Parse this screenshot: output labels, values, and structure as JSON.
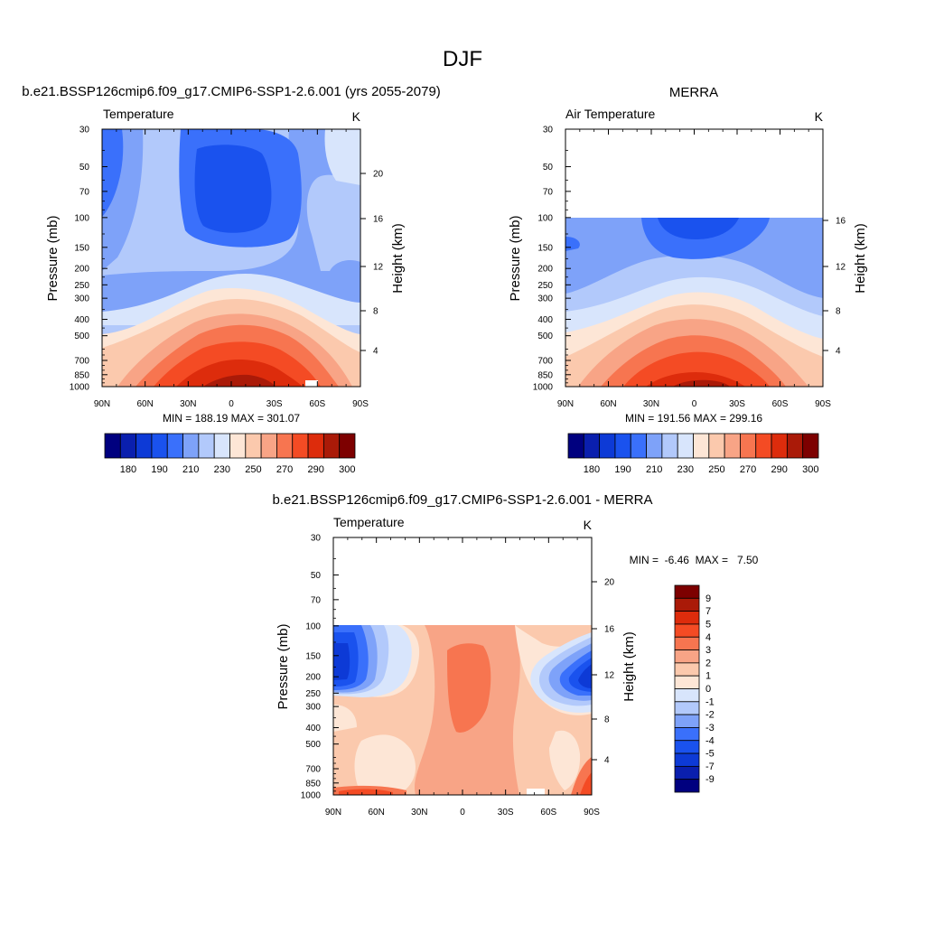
{
  "page_title": "DJF",
  "chart_data": [
    {
      "type": "heatmap",
      "title": "b.e21.BSSP126cmip6.f09_g17.CMIP6-SSP1-2.6.001 (yrs 2055-2079)",
      "subtitle_left": "Temperature",
      "subtitle_right": "K",
      "xlabel": "",
      "ylabel": "Pressure (mb)",
      "ylabel_right": "Height (km)",
      "x_ticks": [
        "90N",
        "60N",
        "30N",
        "0",
        "30S",
        "60S",
        "90S"
      ],
      "y_ticks": [
        "30",
        "50",
        "70",
        "100",
        "150",
        "200",
        "250",
        "300",
        "400",
        "500",
        "700",
        "850",
        "1000"
      ],
      "height_ticks": [
        "20",
        "16",
        "12",
        "8",
        "4"
      ],
      "ylim": [
        1000,
        30
      ],
      "y_scale": "log",
      "stats": "MIN = 188.19  MAX = 301.07",
      "min": 188.19,
      "max": 301.07,
      "colorbar_labels": [
        "180",
        "190",
        "210",
        "230",
        "250",
        "270",
        "290",
        "300"
      ]
    },
    {
      "type": "heatmap",
      "title": "MERRA",
      "subtitle_left": "Air Temperature",
      "subtitle_right": "K",
      "xlabel": "",
      "ylabel": "Pressure (mb)",
      "ylabel_right": "Height (km)",
      "x_ticks": [
        "90N",
        "60N",
        "30N",
        "0",
        "30S",
        "60S",
        "90S"
      ],
      "y_ticks": [
        "30",
        "50",
        "70",
        "100",
        "150",
        "200",
        "250",
        "300",
        "400",
        "500",
        "700",
        "850",
        "1000"
      ],
      "height_ticks": [
        "16",
        "12",
        "8",
        "4"
      ],
      "ylim": [
        1000,
        30
      ],
      "y_scale": "log",
      "data_top_pressure": 100,
      "stats": "MIN = 191.56  MAX = 299.16",
      "min": 191.56,
      "max": 299.16,
      "colorbar_labels": [
        "180",
        "190",
        "210",
        "230",
        "250",
        "270",
        "290",
        "300"
      ]
    },
    {
      "type": "heatmap",
      "title": "b.e21.BSSP126cmip6.f09_g17.CMIP6-SSP1-2.6.001 - MERRA",
      "subtitle_left": "Temperature",
      "subtitle_right": "K",
      "xlabel": "",
      "ylabel": "Pressure (mb)",
      "ylabel_right": "Height (km)",
      "x_ticks": [
        "90N",
        "60N",
        "30N",
        "0",
        "30S",
        "60S",
        "90S"
      ],
      "y_ticks": [
        "30",
        "50",
        "70",
        "100",
        "150",
        "200",
        "250",
        "300",
        "400",
        "500",
        "700",
        "850",
        "1000"
      ],
      "height_ticks": [
        "20",
        "16",
        "12",
        "8",
        "4"
      ],
      "ylim": [
        1000,
        30
      ],
      "y_scale": "log",
      "data_top_pressure": 100,
      "stats": "MIN =  -6.46  MAX =   7.50",
      "min": -6.46,
      "max": 7.5,
      "colorbar_labels": [
        "9",
        "7",
        "5",
        "4",
        "3",
        "2",
        "1",
        "0",
        "-1",
        "-2",
        "-3",
        "-4",
        "-5",
        "-7",
        "-9"
      ]
    }
  ],
  "colors": {
    "temp_scale": [
      "#00007f",
      "#0a1fae",
      "#0d3ad6",
      "#1a52ee",
      "#3a70fb",
      "#7ea2f9",
      "#b2c9fb",
      "#d8e5fc",
      "#fde6d6",
      "#fbc9ad",
      "#f8a486",
      "#f77550",
      "#f44b24",
      "#dd2c0c",
      "#aa1a08",
      "#7d0000"
    ],
    "diff_scale": [
      "#7d0000",
      "#aa1a08",
      "#dd2c0c",
      "#f44b24",
      "#f77550",
      "#f8a486",
      "#fbc9ad",
      "#fde6d6",
      "#d8e5fc",
      "#b2c9fb",
      "#7ea2f9",
      "#3a70fb",
      "#1a52ee",
      "#0d3ad6",
      "#0a1fae",
      "#00007f"
    ]
  }
}
